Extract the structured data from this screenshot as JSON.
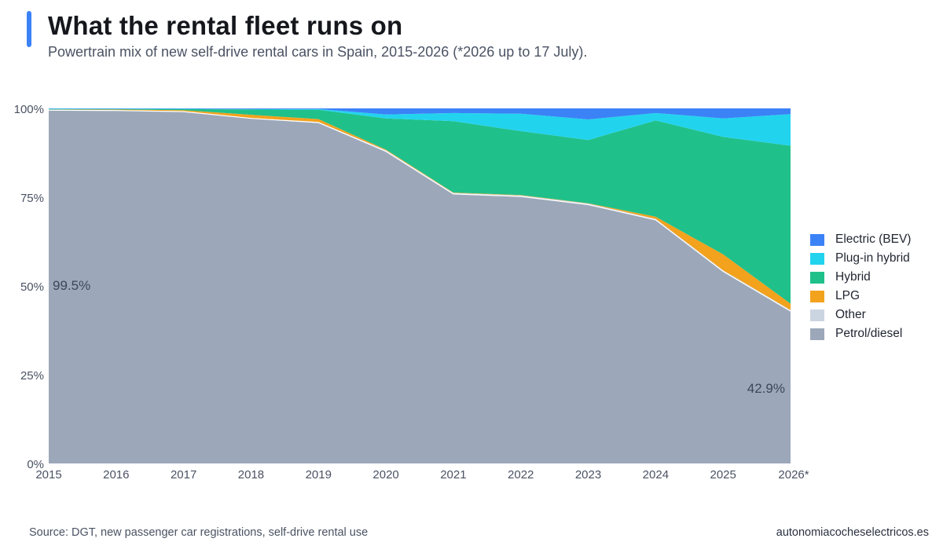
{
  "header": {
    "title": "What the rental fleet runs on",
    "subtitle": "Powertrain mix of new self-drive rental cars in Spain, 2015-2026 (*2026 up to 17 July).",
    "accent_color": "#3b82f6"
  },
  "footer": {
    "source": "Source: DGT, new passenger car registrations, self-drive rental use",
    "site": "autonomiacocheselectricos.es"
  },
  "legend": [
    {
      "label": "Electric (BEV)",
      "color": "#3b82f6"
    },
    {
      "label": "Plug-in hybrid",
      "color": "#22d3ee"
    },
    {
      "label": "Hybrid",
      "color": "#20c08a"
    },
    {
      "label": "LPG",
      "color": "#f2a21d"
    },
    {
      "label": "Other",
      "color": "#cbd5e1"
    },
    {
      "label": "Petrol/diesel",
      "color": "#9ca8ba"
    }
  ],
  "chart_data": {
    "type": "area",
    "stacked": true,
    "x": [
      "2015",
      "2016",
      "2017",
      "2018",
      "2019",
      "2020",
      "2021",
      "2022",
      "2023",
      "2024",
      "2025",
      "2026*"
    ],
    "ylim": [
      0,
      100
    ],
    "yticks": [
      "0%",
      "25%",
      "50%",
      "75%",
      "100%"
    ],
    "series": [
      {
        "name": "Petrol/diesel",
        "color": "#9ca8ba",
        "values": [
          99.5,
          99.4,
          99.1,
          97.2,
          96.0,
          87.9,
          75.9,
          75.2,
          72.9,
          68.6,
          54.1,
          42.9
        ]
      },
      {
        "name": "Other",
        "color": "#cbd5e1",
        "values": [
          0.1,
          0.1,
          0.1,
          0.1,
          0.2,
          0.3,
          0.3,
          0.3,
          0.3,
          0.3,
          0.3,
          0.3
        ]
      },
      {
        "name": "LPG",
        "color": "#f2a21d",
        "values": [
          0.1,
          0.2,
          0.3,
          0.9,
          0.8,
          0.2,
          0.1,
          0.1,
          0.1,
          0.6,
          4.5,
          1.8
        ]
      },
      {
        "name": "Hybrid",
        "color": "#20c08a",
        "values": [
          0.1,
          0.1,
          0.3,
          1.5,
          2.6,
          8.8,
          20.1,
          18.0,
          17.8,
          27.1,
          33.1,
          44.5
        ]
      },
      {
        "name": "Plug-in hybrid",
        "color": "#22d3ee",
        "values": [
          0.1,
          0.1,
          0.1,
          0.1,
          0.2,
          1.1,
          2.3,
          4.9,
          5.8,
          2.1,
          5.2,
          8.9
        ]
      },
      {
        "name": "Electric (BEV)",
        "color": "#3b82f6",
        "values": [
          0.1,
          0.1,
          0.1,
          0.2,
          0.2,
          1.7,
          1.3,
          1.5,
          3.1,
          1.3,
          2.8,
          1.6
        ]
      }
    ],
    "annotations": [
      {
        "text": "99.5%",
        "x": "2015",
        "series": "Petrol/diesel"
      },
      {
        "text": "42.9%",
        "x": "2026*",
        "series": "Petrol/diesel"
      }
    ],
    "legend_position": "right"
  }
}
